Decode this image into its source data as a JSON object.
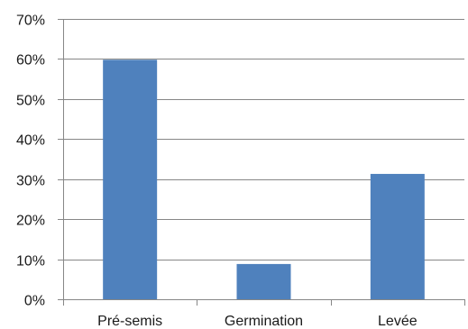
{
  "chart_data": {
    "type": "bar",
    "title": "",
    "xlabel": "",
    "ylabel": "",
    "categories": [
      "Pré-semis",
      "Germination",
      "Levée"
    ],
    "values": [
      0.598,
      0.088,
      0.313
    ],
    "ylim": [
      0,
      0.7
    ],
    "y_ticks": [
      0,
      0.1,
      0.2,
      0.3,
      0.4,
      0.5,
      0.6,
      0.7
    ],
    "y_tick_labels": [
      "0%",
      "10%",
      "20%",
      "30%",
      "40%",
      "50%",
      "60%",
      "70%"
    ],
    "grid": true,
    "legend": "none",
    "bar_color": "#4f81bd",
    "grid_color": "#878787"
  }
}
